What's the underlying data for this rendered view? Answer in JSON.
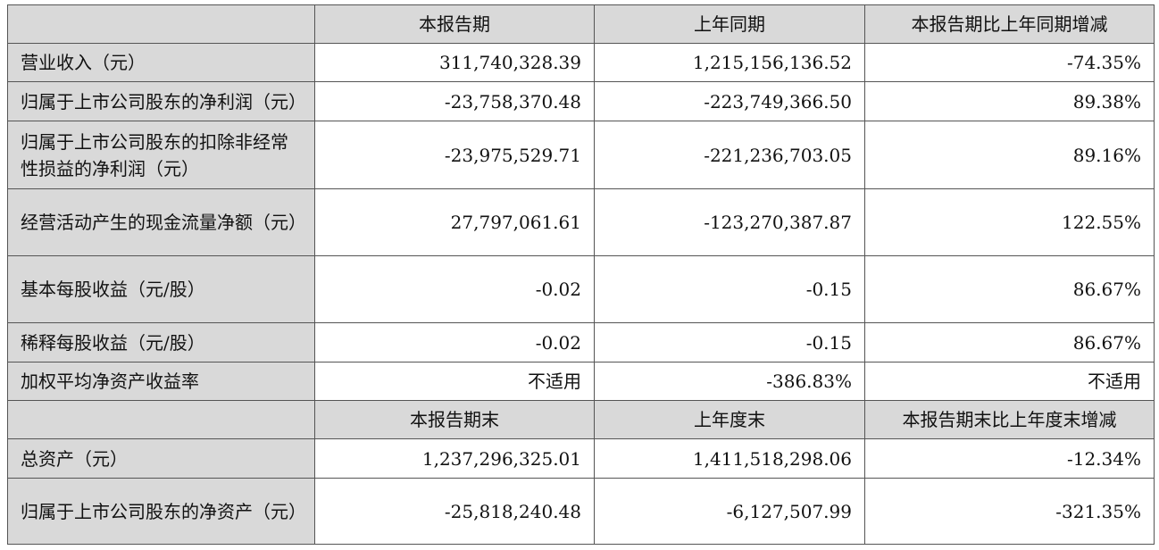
{
  "table": {
    "header1": [
      "",
      "本报告期",
      "上年同期",
      "本报告期比上年同期增减"
    ],
    "rows1": [
      {
        "label": "营业收入（元）",
        "values": [
          "311,740,328.39",
          "1,215,156,136.52",
          "-74.35%"
        ]
      },
      {
        "label": "归属于上市公司股东的净利润（元）",
        "values": [
          "-23,758,370.48",
          "-223,749,366.50",
          "89.38%"
        ]
      },
      {
        "label": "归属于上市公司股东的扣除非经常性损益的净利润（元）",
        "values": [
          "-23,975,529.71",
          "-221,236,703.05",
          "89.16%"
        ]
      },
      {
        "label": "经营活动产生的现金流量净额（元）",
        "values": [
          "27,797,061.61",
          "-123,270,387.87",
          "122.55%"
        ]
      },
      {
        "label": "基本每股收益（元/股）",
        "values": [
          "-0.02",
          "-0.15",
          "86.67%"
        ]
      },
      {
        "label": "稀释每股收益（元/股）",
        "values": [
          "-0.02",
          "-0.15",
          "86.67%"
        ]
      },
      {
        "label": "加权平均净资产收益率",
        "values": [
          "不适用",
          "-386.83%",
          "不适用"
        ]
      }
    ],
    "header2": [
      "",
      "本报告期末",
      "上年度末",
      "本报告期末比上年度末增减"
    ],
    "rows2": [
      {
        "label": "总资产（元）",
        "values": [
          "1,237,296,325.01",
          "1,411,518,298.06",
          "-12.34%"
        ]
      },
      {
        "label": "归属于上市公司股东的净资产（元）",
        "values": [
          "-25,818,240.48",
          "-6,127,507.99",
          "-321.35%"
        ]
      }
    ]
  }
}
